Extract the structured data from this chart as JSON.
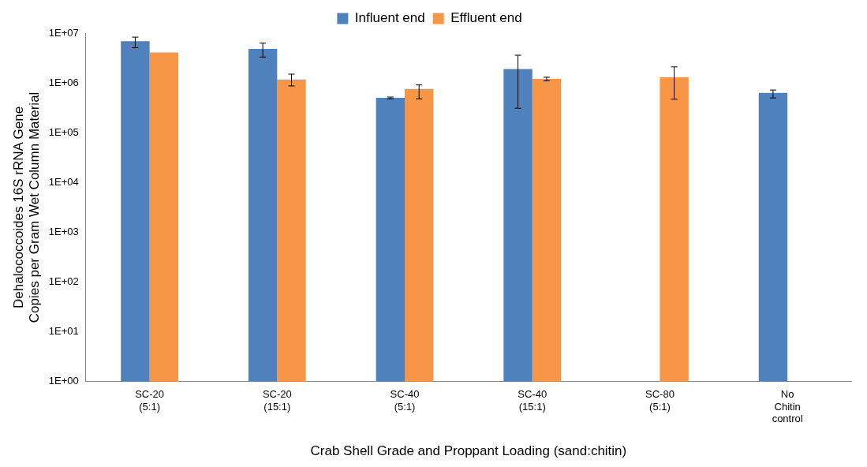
{
  "chart_data": {
    "type": "bar",
    "xlabel": "Crab Shell Grade and Proppant Loading (sand:chitin)",
    "ylabel": "Dehalococcoides 16S rRNA Gene Copies per Gram Wet Column Material",
    "categories": [
      "SC-20\n(5:1)",
      "SC-20\n(15:1)",
      "SC-40\n(5:1)",
      "SC-40\n(15:1)",
      "SC-80\n(5:1)",
      "No\nChitin\ncontrol"
    ],
    "series": [
      {
        "name": "Influent end",
        "color": "#4f81bd",
        "values": [
          6900000,
          4800000,
          500000,
          1900000,
          null,
          630000
        ],
        "errors": [
          [
            5100000,
            8300000
          ],
          [
            3300000,
            6300000
          ],
          [
            480000,
            520000
          ],
          [
            310000,
            3600000
          ],
          null,
          [
            500000,
            720000
          ]
        ]
      },
      {
        "name": "Effluent end",
        "color": "#f79646",
        "values": [
          4100000,
          1170000,
          760000,
          1200000,
          1300000,
          null
        ],
        "errors": [
          null,
          [
            870000,
            1500000
          ],
          [
            480000,
            910000
          ],
          [
            1100000,
            1300000
          ],
          [
            470000,
            2100000
          ],
          null
        ]
      }
    ],
    "log": "y",
    "ylim": [
      1,
      10000000
    ],
    "yticks": [
      {
        "value": 1,
        "label": "1E+00"
      },
      {
        "value": 10,
        "label": "1E+01"
      },
      {
        "value": 100,
        "label": "1E+02"
      },
      {
        "value": 1000,
        "label": "1E+03"
      },
      {
        "value": 10000,
        "label": "1E+04"
      },
      {
        "value": 100000,
        "label": "1E+05"
      },
      {
        "value": 1000000,
        "label": "1E+06"
      },
      {
        "value": 10000000,
        "label": "1E+07"
      }
    ],
    "grid": false,
    "legend": "top"
  }
}
